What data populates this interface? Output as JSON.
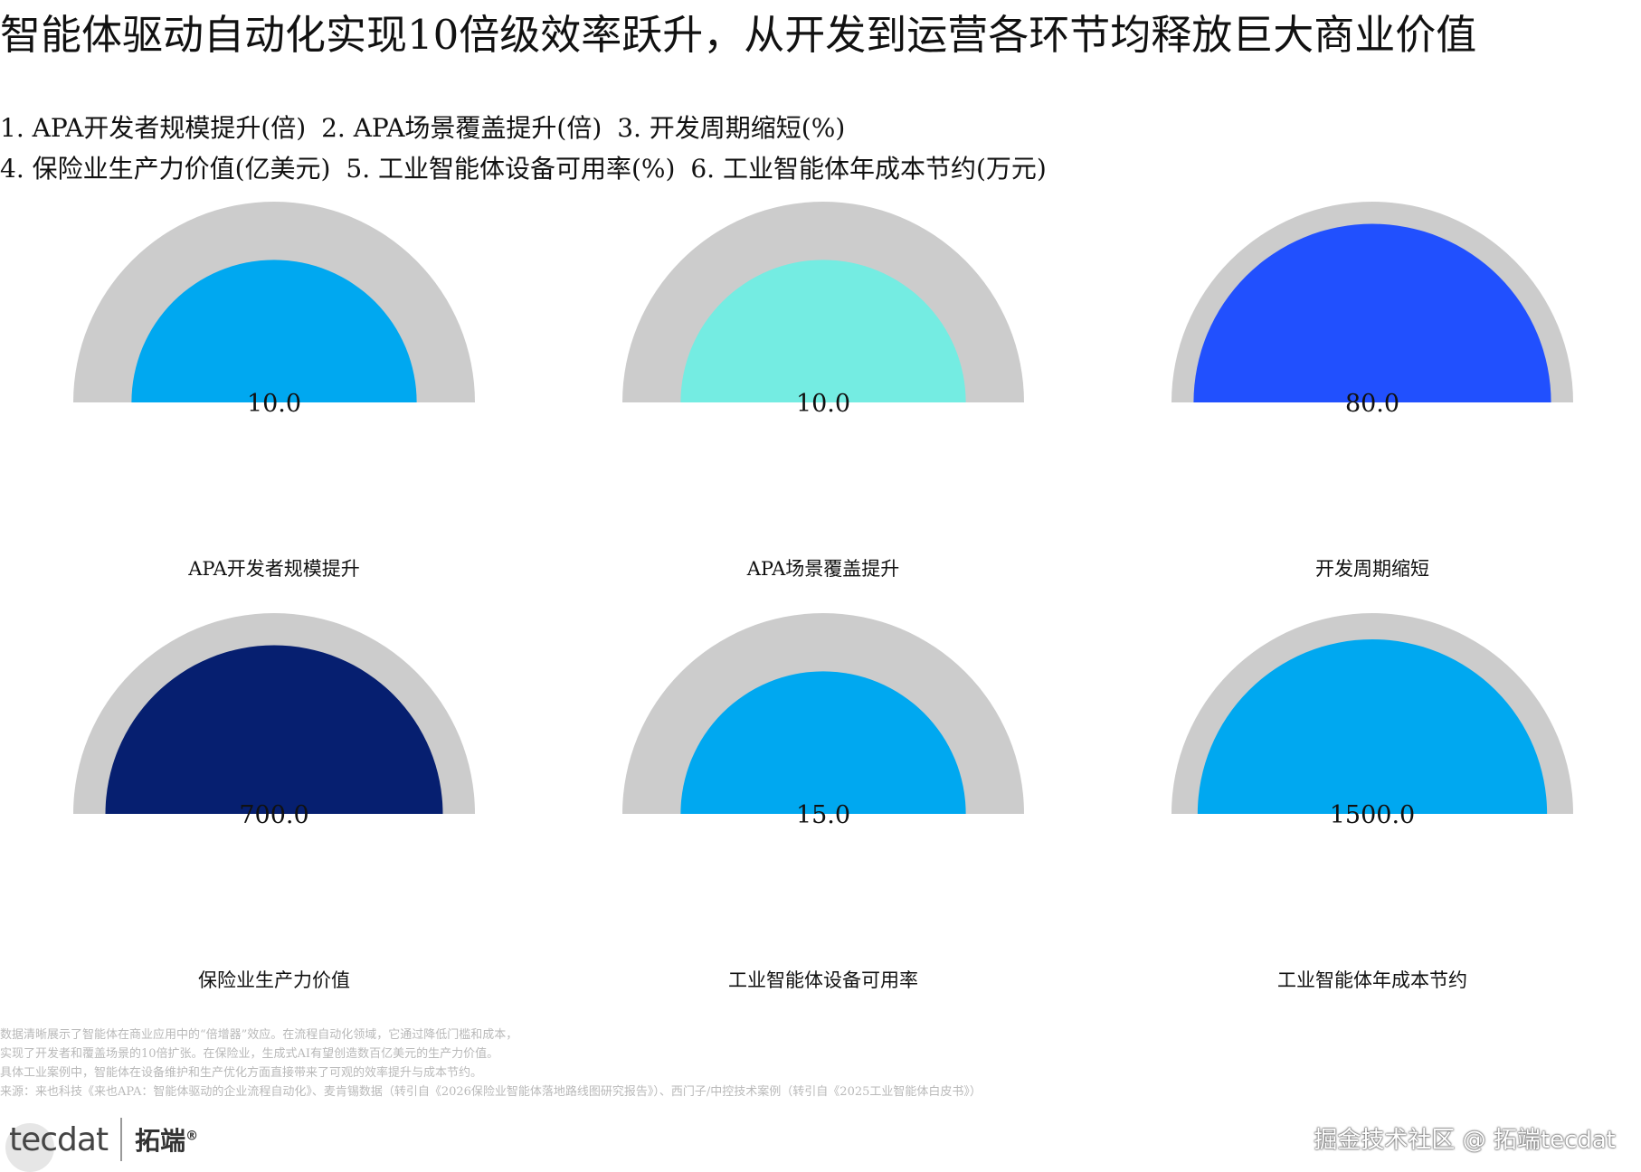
{
  "title": "智能体驱动自动化实现10倍级效率跃升，从开发到运营各环节均释放巨大商业价值",
  "legend_lines": [
    [
      "1. APA开发者规模提升(倍)",
      "2. APA场景覆盖提升(倍)",
      "3. 开发周期缩短(%)"
    ],
    [
      "4. 保险业生产力价值(亿美元)",
      "5. 工业智能体设备可用率(%)",
      "6. 工业智能体年成本节约(万元)"
    ]
  ],
  "chart_data": {
    "type": "gauge",
    "track_color": "#cccccc",
    "gauges": [
      {
        "name": "APA开发者规模提升",
        "value": 10.0,
        "display": "10.0",
        "fraction": 0.71,
        "color": "#00a8f0"
      },
      {
        "name": "APA场景覆盖提升",
        "value": 10.0,
        "display": "10.0",
        "fraction": 0.71,
        "color": "#74ece2"
      },
      {
        "name": "开发周期缩短",
        "value": 80.0,
        "display": "80.0",
        "fraction": 0.89,
        "color": "#2150fe"
      },
      {
        "name": "保险业生产力价值",
        "value": 700.0,
        "display": "700.0",
        "fraction": 0.84,
        "color": "#061f70"
      },
      {
        "name": "工业智能体设备可用率",
        "value": 15.0,
        "display": "15.0",
        "fraction": 0.71,
        "color": "#00a8f0"
      },
      {
        "name": "工业智能体年成本节约",
        "value": 1500.0,
        "display": "1500.0",
        "fraction": 0.87,
        "color": "#00a8f0"
      }
    ]
  },
  "notes": [
    "数据清晰展示了智能体在商业应用中的“倍增器”效应。在流程自动化领域，它通过降低门槛和成本，",
    "实现了开发者和覆盖场景的10倍扩张。在保险业，生成式AI有望创造数百亿美元的生产力价值。",
    "具体工业案例中，智能体在设备维护和生产优化方面直接带来了可观的效率提升与成本节约。",
    "来源：来也科技《来也APA：智能体驱动的企业流程自动化》、麦肯锡数据（转引自《2026保险业智能体落地路线图研究报告》）、西门子/中控技术案例（转引自《2025工业智能体白皮书》）"
  ],
  "brand": {
    "logo": "tecdat",
    "cn": "拓端",
    "reg": "®"
  },
  "watermark": "掘金技术社区 @ 拓端tecdat"
}
